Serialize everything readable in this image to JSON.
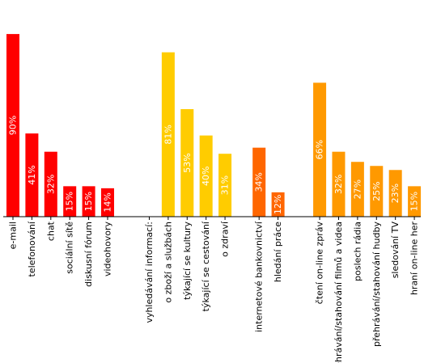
{
  "chart_data": {
    "type": "bar",
    "ylim": [
      0,
      100
    ],
    "grid": false,
    "groups": [
      {
        "color": "#ff0000",
        "bars": [
          {
            "label": "e-mail",
            "value": 90,
            "value_label": "90%"
          },
          {
            "label": "telefonování",
            "value": 41,
            "value_label": "41%"
          },
          {
            "label": "chat",
            "value": 32,
            "value_label": "32%"
          },
          {
            "label": "sociální sítě",
            "value": 15,
            "value_label": "15%"
          },
          {
            "label": "diskusní fórum",
            "value": 15,
            "value_label": "15%"
          },
          {
            "label": "videohovory",
            "value": 14,
            "value_label": "14%"
          }
        ]
      },
      {
        "color": "#ffcc00",
        "bars": [
          {
            "label": "vyhledávání informací:",
            "value": null,
            "value_label": ""
          },
          {
            "label": "o zboží a službách",
            "value": 81,
            "value_label": "81%"
          },
          {
            "label": "týkající se kultury",
            "value": 53,
            "value_label": "53%"
          },
          {
            "label": "týkající se cestování",
            "value": 40,
            "value_label": "40%"
          },
          {
            "label": "o zdraví",
            "value": 31,
            "value_label": "31%"
          }
        ]
      },
      {
        "color": "#ff6600",
        "bars": [
          {
            "label": "internetové bankovnictví",
            "value": 34,
            "value_label": "34%"
          },
          {
            "label": "hledání práce",
            "value": 12,
            "value_label": "12%"
          }
        ]
      },
      {
        "color": "#ff9900",
        "bars": [
          {
            "label": "čtení on-line zpráv",
            "value": 66,
            "value_label": "66%"
          },
          {
            "label": "přehrávání/stahování filmů a videa",
            "value": 32,
            "value_label": "32%"
          },
          {
            "label": "poslech rádia",
            "value": 27,
            "value_label": "27%"
          },
          {
            "label": "přehrávání/stahování hudby",
            "value": 25,
            "value_label": "25%"
          },
          {
            "label": "sledování TV",
            "value": 23,
            "value_label": "23%"
          },
          {
            "label": "hraní on-line her",
            "value": 15,
            "value_label": "15%"
          }
        ]
      }
    ]
  }
}
